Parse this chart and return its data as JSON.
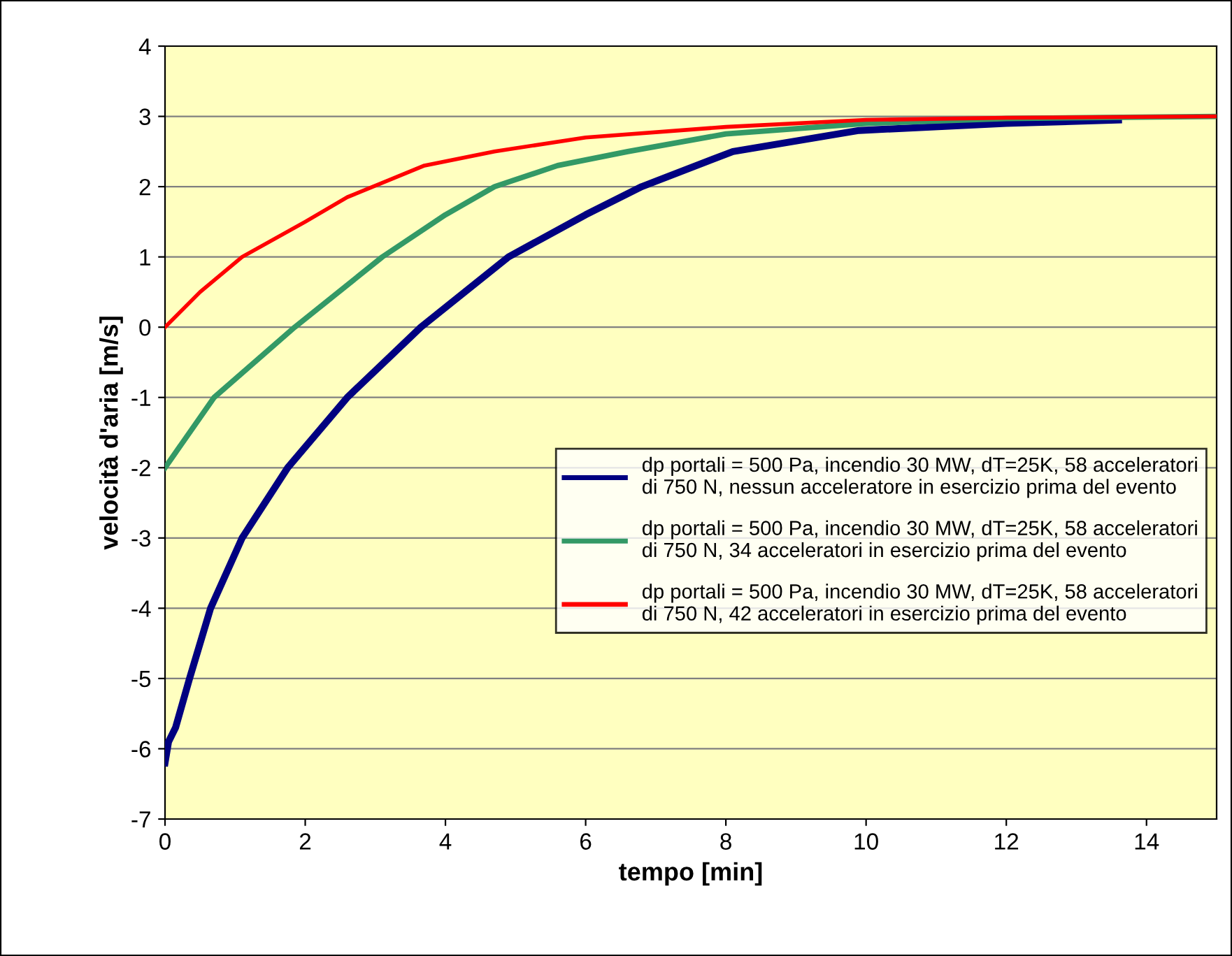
{
  "chart_data": {
    "type": "line",
    "xlabel": "tempo [min]",
    "ylabel": "velocità d'aria [m/s]",
    "xlim": [
      0,
      15
    ],
    "xticks": [
      0,
      2,
      4,
      6,
      8,
      10,
      12,
      14
    ],
    "ylim": [
      -7,
      4
    ],
    "yticks": [
      -7,
      -6,
      -5,
      -4,
      -3,
      -2,
      -1,
      0,
      1,
      2,
      3,
      4
    ],
    "grid": "y",
    "legend": "center right",
    "marker": "none",
    "line_style": "solid",
    "series": [
      {
        "name": "dp portali = 500 Pa, incendio 30 MW, dT=25K, 58 acceleratori di 750 N, nessun acceleratore in esercizio prima del evento",
        "color": "#000080",
        "x": [
          0,
          0.05,
          0.15,
          0.35,
          0.65,
          1.1,
          1.75,
          2.6,
          3.65,
          4.9,
          6.0,
          6.8,
          8.1,
          9.9,
          12,
          13.6
        ],
        "values": [
          -6.2,
          -5.9,
          -5.7,
          -5.0,
          -4.0,
          -3.0,
          -2.0,
          -1.0,
          0,
          1.0,
          1.6,
          2.0,
          2.5,
          2.8,
          2.9,
          2.95
        ]
      },
      {
        "name": "dp portali = 500 Pa, incendio 30 MW, dT=25K, 58 acceleratori di 750 N, 34 acceleratori in esercizio prima del evento",
        "color": "#339966",
        "x": [
          0,
          0.7,
          1.85,
          3.1,
          4.0,
          4.7,
          5.6,
          6.6,
          8,
          10,
          12,
          15
        ],
        "values": [
          -2.0,
          -1.0,
          0,
          1.0,
          1.6,
          2.0,
          2.3,
          2.5,
          2.75,
          2.9,
          2.97,
          3.0
        ]
      },
      {
        "name": "dp portali = 500 Pa, incendio 30 MW, dT=25K, 58 acceleratori di 750 N, 42 acceleratori in esercizio prima del evento",
        "color": "#ff0000",
        "x": [
          0,
          0.5,
          1.1,
          2.0,
          2.6,
          3.7,
          4.7,
          6,
          8,
          10,
          12,
          15
        ],
        "values": [
          0,
          0.5,
          1.0,
          1.5,
          1.85,
          2.3,
          2.5,
          2.7,
          2.85,
          2.95,
          2.98,
          3.0
        ]
      }
    ]
  }
}
